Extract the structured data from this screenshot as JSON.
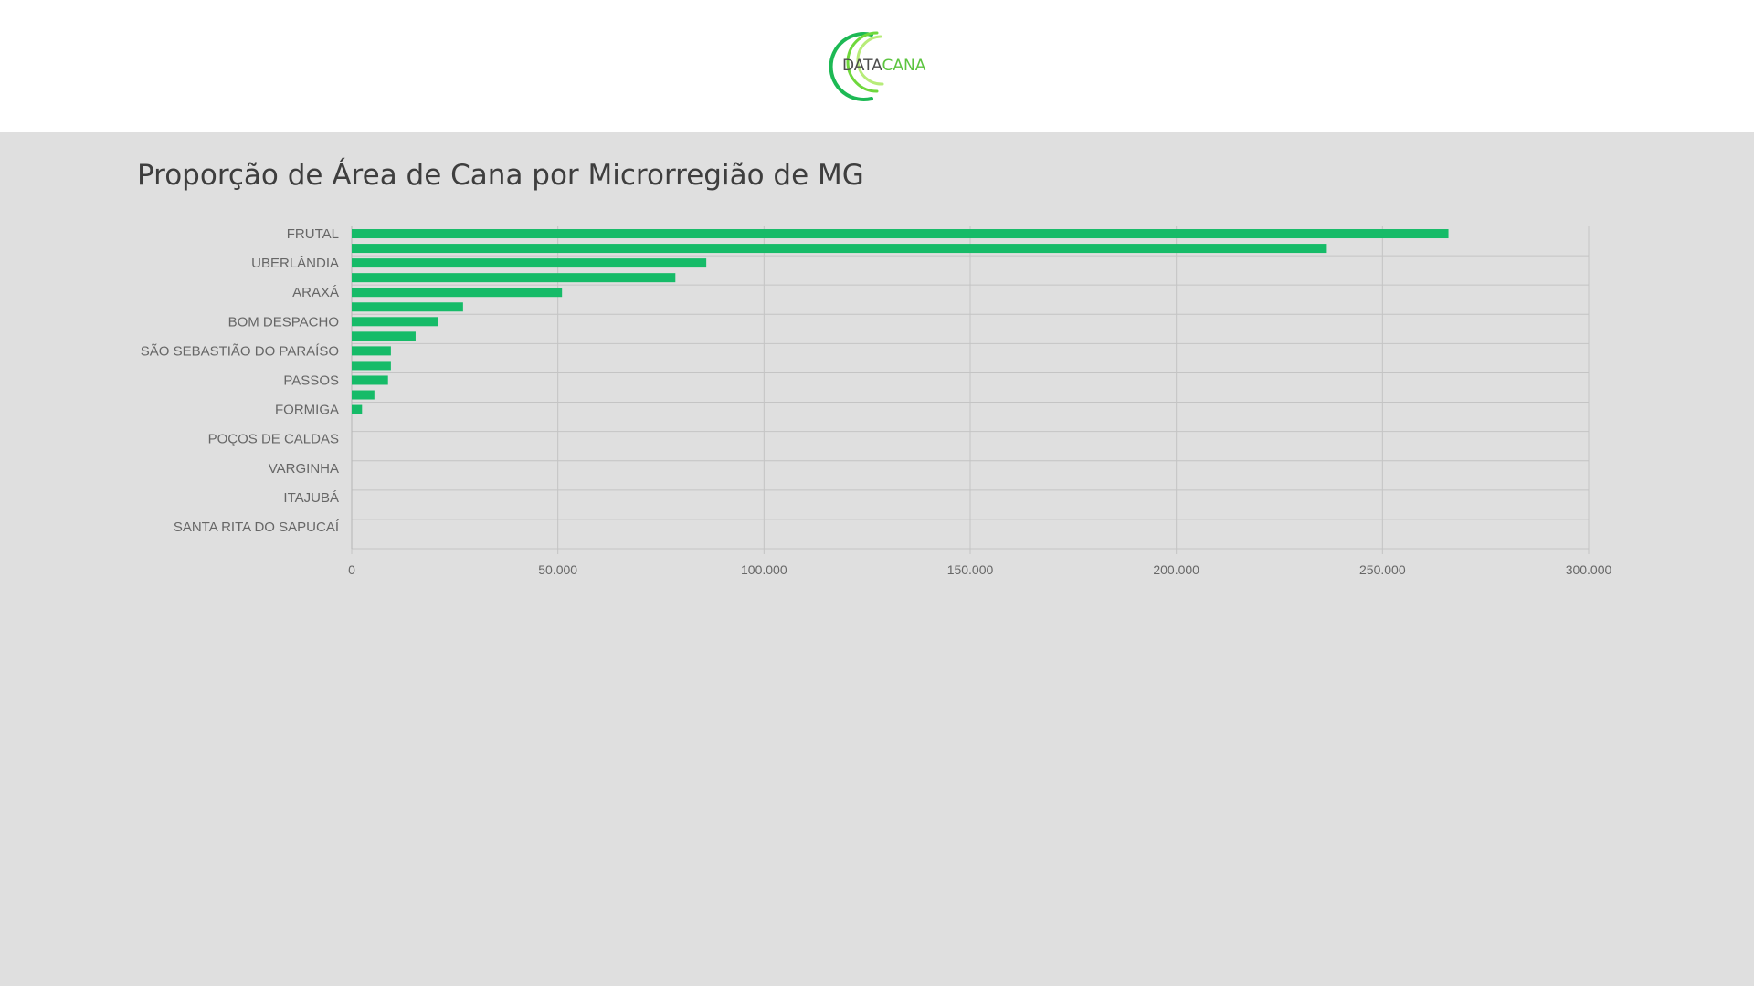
{
  "logo": {
    "data_text": "DATA",
    "cana_text": "CANA"
  },
  "chart_data": {
    "type": "bar",
    "orientation": "horizontal",
    "title": "Proporção de Área de Cana por Microrregião de MG",
    "xlim": [
      0,
      300000
    ],
    "x_ticks": [
      "0",
      "50.000",
      "100.000",
      "150.000",
      "200.000",
      "250.000",
      "300.000"
    ],
    "x_tick_values": [
      0,
      50000,
      100000,
      150000,
      200000,
      250000,
      300000
    ],
    "grid": true,
    "y_tick_labels": [
      "FRUTAL",
      "UBERLÂNDIA",
      "ARAXÁ",
      "BOM DESPACHO",
      "SÃO SEBASTIÃO DO PARAÍSO",
      "PASSOS",
      "FORMIGA",
      "POÇOS DE CALDAS",
      "VARGINHA",
      "ITAJUBÁ",
      "SANTA RITA DO SAPUCAÍ"
    ],
    "values": [
      266000,
      236500,
      86000,
      78500,
      51000,
      27000,
      21000,
      15500,
      9500,
      9500,
      8800,
      5500,
      2500,
      0,
      0,
      0,
      0,
      0,
      0,
      0,
      0,
      0
    ],
    "bar_color": "#16bb68"
  }
}
